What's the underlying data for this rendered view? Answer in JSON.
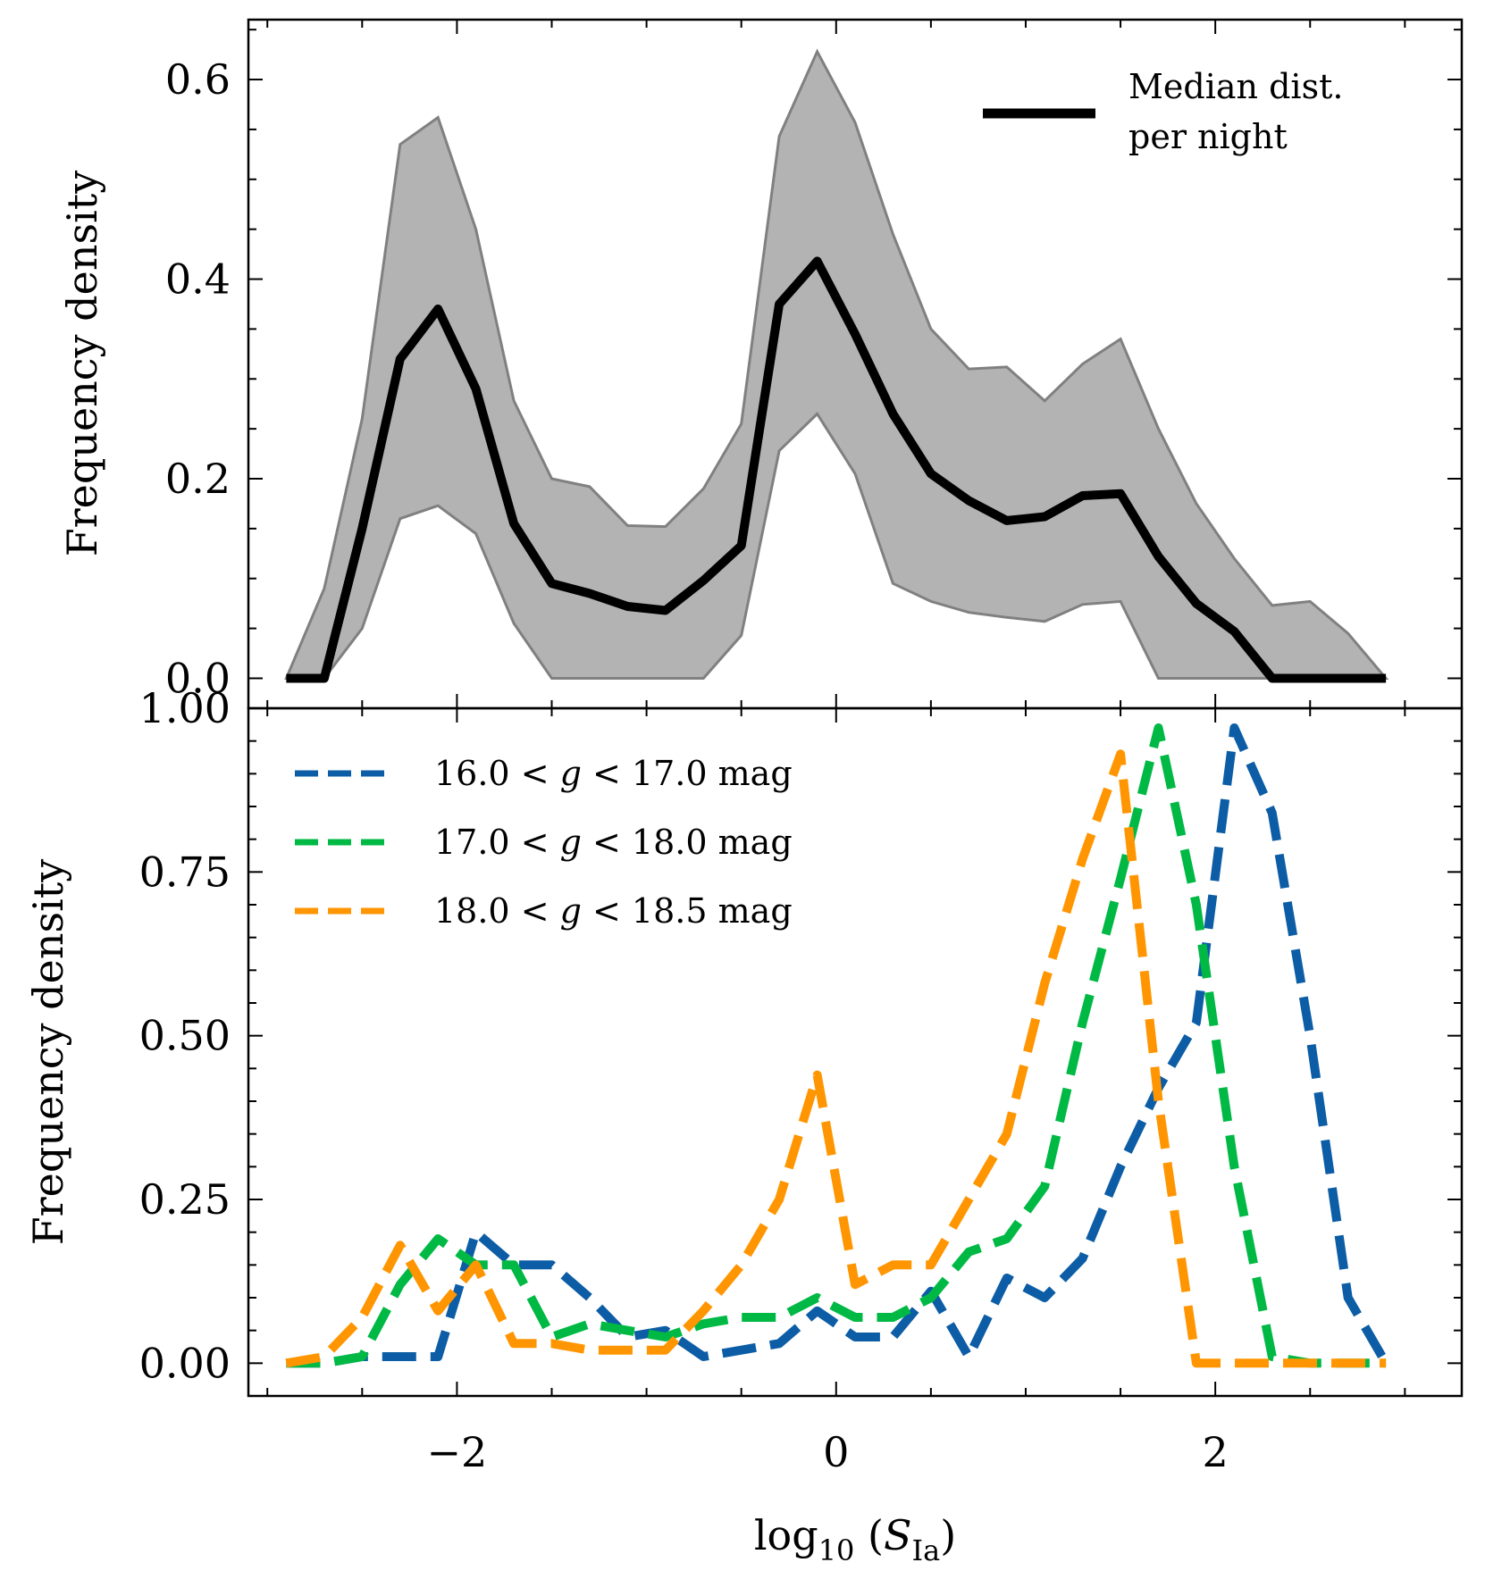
{
  "chart_data": [
    {
      "type": "line",
      "panel": "top",
      "ylabel": "Frequency density",
      "xlim": [
        -3.1,
        3.3
      ],
      "ylim": [
        -0.03,
        0.66
      ],
      "yticks": [
        0.0,
        0.2,
        0.4,
        0.6
      ],
      "ytick_labels": [
        "0.0",
        "0.2",
        "0.4",
        "0.6"
      ],
      "legend": {
        "placement": "top-right",
        "label": "Median dist.\nper night",
        "label_lines": [
          "Median dist.",
          "per night"
        ]
      },
      "x": [
        -2.9,
        -2.7,
        -2.5,
        -2.3,
        -2.1,
        -1.9,
        -1.7,
        -1.5,
        -1.3,
        -1.1,
        -0.9,
        -0.7,
        -0.5,
        -0.3,
        -0.1,
        0.1,
        0.3,
        0.5,
        0.7,
        0.9,
        1.1,
        1.3,
        1.5,
        1.7,
        1.9,
        2.1,
        2.3,
        2.5,
        2.7,
        2.9
      ],
      "series": [
        {
          "name": "Median dist. per night",
          "role": "median",
          "color": "#000000",
          "values": [
            0.0,
            0.0,
            0.15,
            0.32,
            0.37,
            0.29,
            0.155,
            0.095,
            0.085,
            0.072,
            0.068,
            0.098,
            0.133,
            0.375,
            0.418,
            0.345,
            0.265,
            0.205,
            0.178,
            0.158,
            0.162,
            0.183,
            0.185,
            0.122,
            0.075,
            0.047,
            0.0,
            0.0,
            0.0,
            0.0
          ]
        },
        {
          "role": "band-upper",
          "color": "#b3b3b3",
          "values": [
            0.0,
            0.09,
            0.26,
            0.535,
            0.562,
            0.45,
            0.278,
            0.2,
            0.192,
            0.153,
            0.152,
            0.19,
            0.255,
            0.543,
            0.628,
            0.557,
            0.445,
            0.35,
            0.31,
            0.312,
            0.278,
            0.315,
            0.34,
            0.25,
            0.175,
            0.12,
            0.073,
            0.077,
            0.045,
            0.0
          ]
        },
        {
          "role": "band-lower",
          "color": "#b3b3b3",
          "values": [
            0.0,
            0.0,
            0.05,
            0.16,
            0.173,
            0.145,
            0.055,
            0.0,
            0.0,
            0.0,
            0.0,
            0.0,
            0.043,
            0.228,
            0.265,
            0.205,
            0.095,
            0.077,
            0.066,
            0.061,
            0.057,
            0.074,
            0.077,
            0.0,
            0.0,
            0.0,
            0.0,
            0.0,
            0.0,
            0.0
          ]
        }
      ]
    },
    {
      "type": "line",
      "panel": "bottom",
      "xlabel": "log10 (SIa)",
      "ylabel": "Frequency density",
      "xlim": [
        -3.1,
        3.3
      ],
      "ylim": [
        -0.05,
        1.0
      ],
      "xticks": [
        -2,
        0,
        2
      ],
      "xtick_labels": [
        "−2",
        "0",
        "2"
      ],
      "yticks": [
        0.0,
        0.25,
        0.5,
        0.75,
        1.0
      ],
      "ytick_labels": [
        "0.00",
        "0.25",
        "0.50",
        "0.75",
        "1.00"
      ],
      "legend": {
        "placement": "top-left"
      },
      "x": [
        -2.9,
        -2.7,
        -2.5,
        -2.3,
        -2.1,
        -1.9,
        -1.7,
        -1.5,
        -1.3,
        -1.1,
        -0.9,
        -0.7,
        -0.5,
        -0.3,
        -0.1,
        0.1,
        0.3,
        0.5,
        0.7,
        0.9,
        1.1,
        1.3,
        1.5,
        1.7,
        1.9,
        2.1,
        2.3,
        2.5,
        2.7,
        2.9
      ],
      "series": [
        {
          "name": "16.0 < g < 17.0 mag",
          "name_parts": [
            "16.0 < ",
            "g",
            " < 17.0 mag"
          ],
          "color": "#0c5da5",
          "values": [
            0.0,
            0.0,
            0.01,
            0.01,
            0.01,
            0.2,
            0.15,
            0.15,
            0.1,
            0.04,
            0.05,
            0.01,
            0.02,
            0.03,
            0.08,
            0.04,
            0.04,
            0.11,
            0.01,
            0.13,
            0.1,
            0.16,
            0.3,
            0.42,
            0.52,
            0.97,
            0.84,
            0.5,
            0.1,
            0.0
          ]
        },
        {
          "name": "17.0 < g < 18.0 mag",
          "name_parts": [
            "17.0 < ",
            "g",
            " < 18.0 mag"
          ],
          "color": "#00b945",
          "values": [
            0.0,
            0.0,
            0.01,
            0.12,
            0.19,
            0.15,
            0.15,
            0.04,
            0.06,
            0.05,
            0.04,
            0.06,
            0.07,
            0.07,
            0.1,
            0.07,
            0.07,
            0.1,
            0.17,
            0.19,
            0.27,
            0.52,
            0.74,
            0.97,
            0.7,
            0.3,
            0.01,
            0.0,
            0.0,
            0.0
          ]
        },
        {
          "name": "18.0 < g < 18.5 mag",
          "name_parts": [
            "18.0 < ",
            "g",
            " < 18.5 mag"
          ],
          "color": "#ff9500",
          "values": [
            0.0,
            0.01,
            0.07,
            0.18,
            0.08,
            0.15,
            0.03,
            0.03,
            0.02,
            0.02,
            0.02,
            0.08,
            0.15,
            0.25,
            0.44,
            0.12,
            0.15,
            0.15,
            0.25,
            0.35,
            0.58,
            0.77,
            0.93,
            0.4,
            0.0,
            0.0,
            0.0,
            0.0,
            0.0,
            0.0
          ]
        }
      ]
    }
  ]
}
